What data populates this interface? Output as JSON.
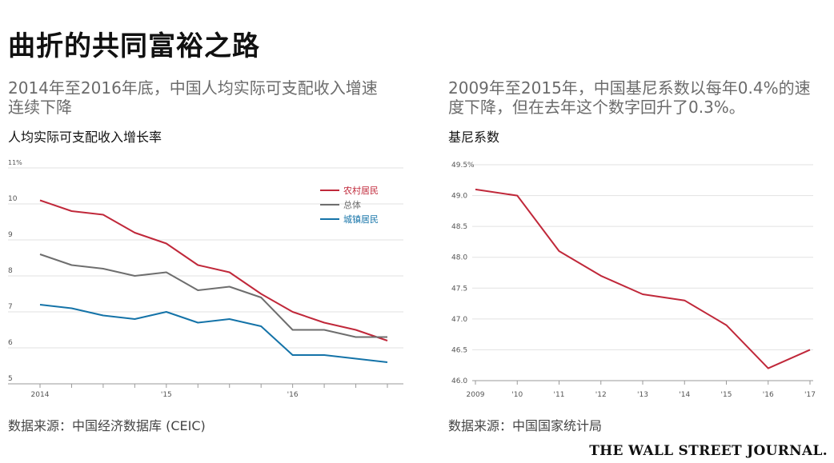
{
  "title": "曲折的共同富裕之路",
  "left": {
    "subtitle": "2014年至2016年底，中国人均实际可支配收入增速连续下降",
    "chart_title": "人均实际可支配收入增长率",
    "source": "数据来源：中国经济数据库 (CEIC)"
  },
  "right": {
    "subtitle": "2009年至2015年，中国基尼系数以每年0.4%的速度下降，但在去年这个数字回升了0.3%。",
    "chart_title": "基尼系数",
    "source": "数据来源：中国国家统计局"
  },
  "brand": "THE WALL STREET JOURNAL.",
  "chart_data": [
    {
      "type": "line",
      "title": "人均实际可支配收入增长率",
      "x_ticks": [
        {
          "index": 0,
          "label": "2014"
        },
        {
          "index": 4,
          "label": "'15"
        },
        {
          "index": 8,
          "label": "'16"
        }
      ],
      "x_count": 12,
      "ylim": [
        5,
        11
      ],
      "y_ticks": [
        5,
        6,
        7,
        8,
        9,
        10,
        11
      ],
      "y_tick_labels": [
        "5",
        "6",
        "7",
        "8",
        "9",
        "10",
        "11%"
      ],
      "grid": true,
      "legend_position": "top-right",
      "series": [
        {
          "name": "农村居民",
          "color": "#c0283a",
          "values": [
            10.1,
            9.8,
            9.7,
            9.2,
            8.9,
            8.3,
            8.1,
            7.5,
            7.0,
            6.7,
            6.5,
            6.2
          ]
        },
        {
          "name": "总体",
          "color": "#6e6e6e",
          "values": [
            8.6,
            8.3,
            8.2,
            8.0,
            8.1,
            7.6,
            7.7,
            7.4,
            6.5,
            6.5,
            6.3,
            6.3
          ]
        },
        {
          "name": "城镇居民",
          "color": "#1473a8",
          "values": [
            7.2,
            7.1,
            6.9,
            6.8,
            7.0,
            6.7,
            6.8,
            6.6,
            5.8,
            5.8,
            5.7,
            5.6
          ]
        }
      ]
    },
    {
      "type": "line",
      "title": "基尼系数",
      "x": [
        "2009",
        "'10",
        "'11",
        "'12",
        "'13",
        "'14",
        "'15",
        "'16",
        "'17"
      ],
      "ylim": [
        46.0,
        49.5
      ],
      "y_ticks": [
        46.0,
        46.5,
        47.0,
        47.5,
        48.0,
        48.5,
        49.0,
        49.5
      ],
      "y_tick_labels": [
        "46.0",
        "46.5",
        "47.0",
        "47.5",
        "48.0",
        "48.5",
        "49.0",
        "49.5%"
      ],
      "grid": true,
      "series": [
        {
          "color": "#c0283a",
          "values": [
            49.1,
            49.0,
            48.1,
            47.7,
            47.4,
            47.3,
            46.9,
            46.2,
            46.5
          ]
        }
      ]
    }
  ]
}
